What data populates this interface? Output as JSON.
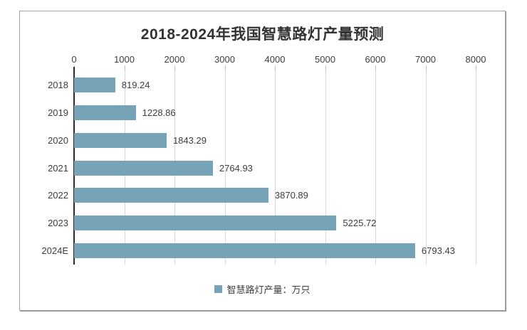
{
  "chart_data": {
    "type": "bar",
    "orientation": "horizontal",
    "title": "2018-2024年我国智慧路灯产量预测",
    "categories": [
      "2018",
      "2019",
      "2020",
      "2021",
      "2022",
      "2023",
      "2024E"
    ],
    "values": [
      819.24,
      1228.86,
      1843.29,
      2764.93,
      3870.89,
      5225.72,
      6793.43
    ],
    "value_labels": [
      "819.24",
      "1228.86",
      "1843.29",
      "2764.93",
      "3870.89",
      "5225.72",
      "6793.43"
    ],
    "xlim": [
      0,
      8000
    ],
    "x_ticks": [
      0,
      1000,
      2000,
      3000,
      4000,
      5000,
      6000,
      7000,
      8000
    ],
    "grid": "vertical",
    "legend_position": "bottom",
    "legend": [
      {
        "label": "智慧路灯产量：万只",
        "color": "#76a3b5"
      }
    ],
    "bar_color": "#76a3b5"
  },
  "colors": {
    "bar": "#76a3b5",
    "text": "#3d3d3d",
    "gridline": "#d9d9d9",
    "tick": "#c0c0c0",
    "axis": "#2b2b2b",
    "panel_border": "#a3a3a3",
    "background": "#ffffff"
  }
}
